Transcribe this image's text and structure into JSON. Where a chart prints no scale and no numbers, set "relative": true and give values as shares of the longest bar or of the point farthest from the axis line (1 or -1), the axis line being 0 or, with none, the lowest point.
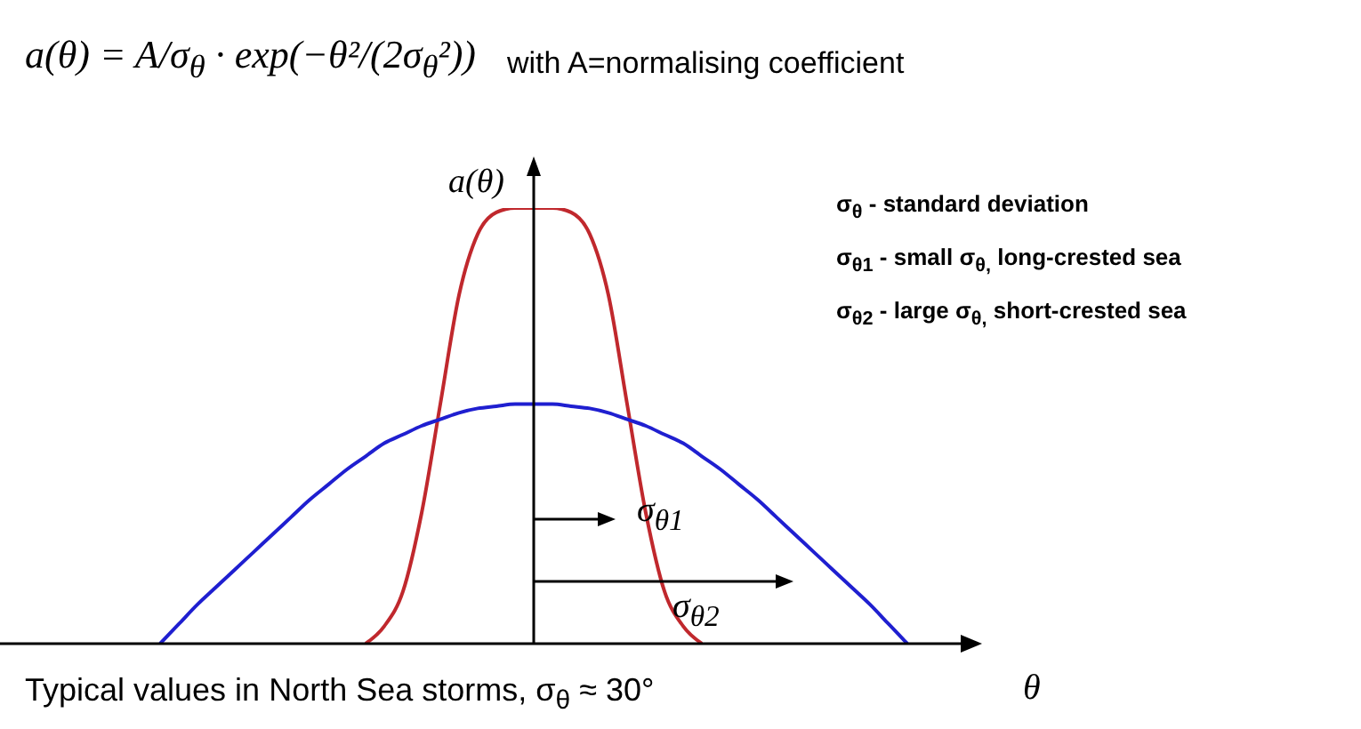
{
  "chart_data": {
    "type": "line",
    "relative": true,
    "title": "a(θ) = A/σ$_{θ}$ · exp(−θ²/(2σ$_{θ}$²))",
    "subtitle": "with A=normalising coefficient",
    "ylabel": "a(θ)",
    "xlabel": "θ",
    "categories": [
      null,
      null,
      null,
      null,
      null,
      null,
      null,
      null,
      null,
      null,
      null,
      null,
      null,
      null,
      null,
      null,
      null,
      null,
      null,
      null,
      null,
      null,
      null,
      null,
      null,
      null,
      null,
      null,
      null,
      null,
      null,
      null,
      null,
      null,
      null,
      null,
      null,
      null,
      null,
      null,
      null
    ],
    "series": [
      {
        "color": "#c0282d",
        "values": [
          null,
          null,
          null,
          null,
          null,
          null,
          null,
          null,
          null,
          null,
          null,
          0,
          0.04,
          0.12,
          0.3,
          0.55,
          0.8,
          0.94,
          0.99,
          1.0,
          1.0,
          1.0,
          0.99,
          0.94,
          0.8,
          0.55,
          0.3,
          0.12,
          0.04,
          0,
          null,
          null,
          null,
          null,
          null,
          null,
          null,
          null,
          null,
          null,
          null
        ]
      },
      {
        "color": "#1f1fd0",
        "values": [
          0,
          0.045,
          0.09,
          0.13,
          0.17,
          0.21,
          0.25,
          0.29,
          0.33,
          0.365,
          0.4,
          0.43,
          0.46,
          0.48,
          0.5,
          0.515,
          0.53,
          0.54,
          0.545,
          0.55,
          0.55,
          0.55,
          0.545,
          0.54,
          0.53,
          0.515,
          0.5,
          0.48,
          0.46,
          0.43,
          0.4,
          0.365,
          0.33,
          0.29,
          0.25,
          0.21,
          0.17,
          0.13,
          0.09,
          0.045,
          0
        ]
      }
    ],
    "annotations": [
      "σ$_{θ}$ - standard deviation",
      "σ$_{θ1}$ - small σ$_{θ,}$ long-crested sea",
      "σ$_{θ2}$ - large σ$_{θ,}$ short-crested sea",
      "σ$_{θ1}$",
      "σ$_{θ2}$",
      "Typical values in North Sea storms, σ$_{θ}$ ≈ 30°"
    ]
  }
}
